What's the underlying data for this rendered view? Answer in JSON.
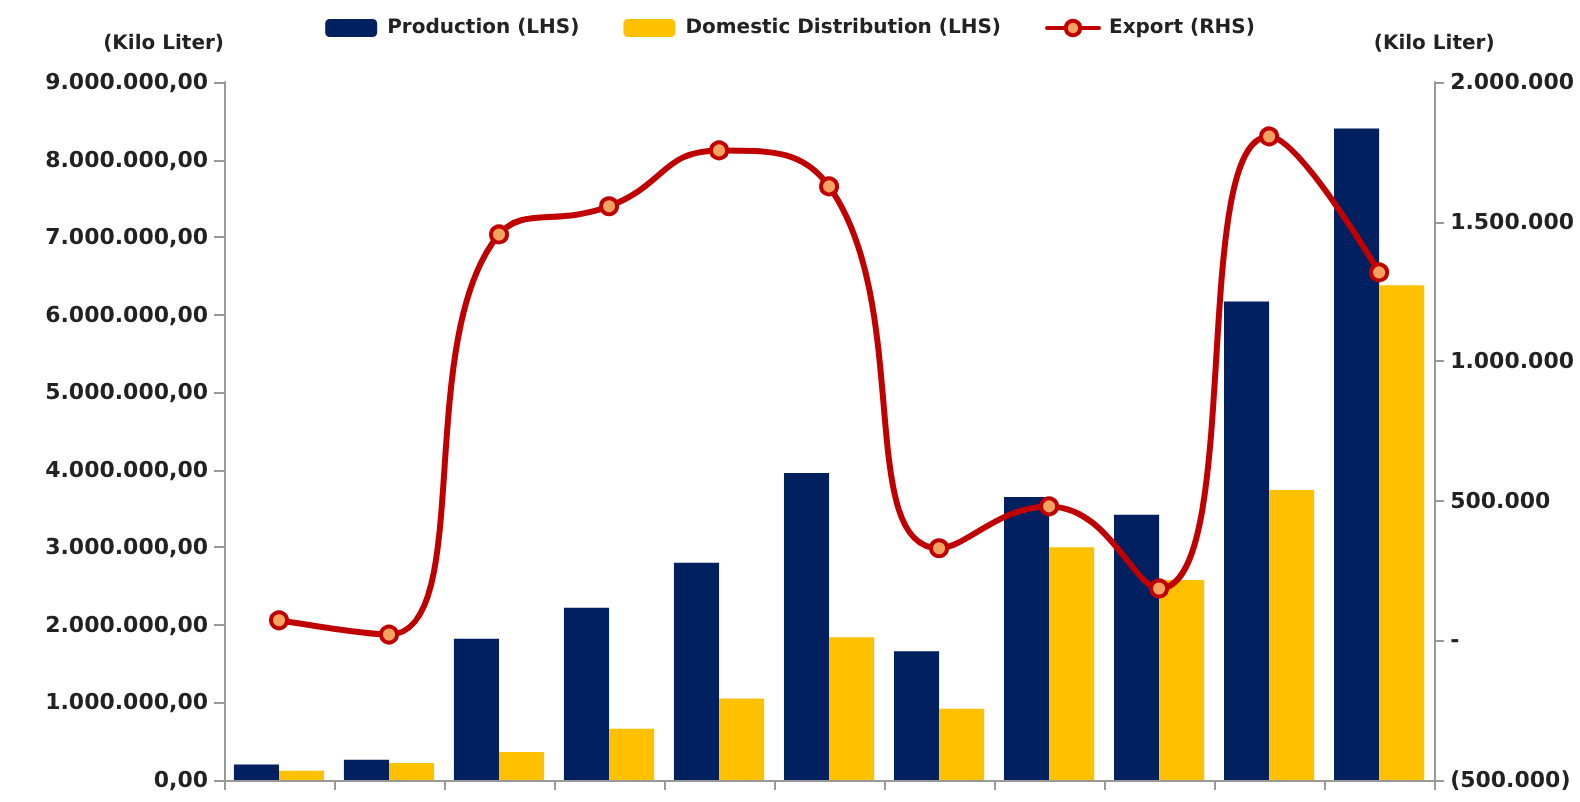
{
  "chart_data": {
    "type": "bar",
    "ylabel": "(Kilo Liter)",
    "y2label": "(Kilo Liter)",
    "categories": [
      null,
      null,
      null,
      null,
      null,
      null,
      null,
      null,
      null,
      null,
      null
    ],
    "series": [
      {
        "name": "Production (LHS)",
        "color": "#002060",
        "values": [
          200000,
          260000,
          1820000,
          2220000,
          2800000,
          3960000,
          1660000,
          3650000,
          3420000,
          6170000,
          8400000
        ]
      },
      {
        "name": "Domestic Distribution (LHS)",
        "color": "#ffc000",
        "values": [
          120000,
          220000,
          360000,
          660000,
          1050000,
          1840000,
          920000,
          3000000,
          2580000,
          3740000,
          6380000
        ]
      },
      {
        "name": "Export (RHS)",
        "type": "line",
        "axis": "y2",
        "color": "#c00000",
        "marker": "circle",
        "values": [
          72000,
          21000,
          1454000,
          1555000,
          1755000,
          1626000,
          330000,
          480000,
          186000,
          1805000,
          1318000
        ]
      }
    ],
    "ylim": [
      0,
      9000000
    ],
    "yticks": [
      {
        "value": 0,
        "label": "0,00"
      },
      {
        "value": 1000000,
        "label": "1.000.000,00"
      },
      {
        "value": 2000000,
        "label": "2.000.000,00"
      },
      {
        "value": 3000000,
        "label": "3.000.000,00"
      },
      {
        "value": 4000000,
        "label": "4.000.000,00"
      },
      {
        "value": 5000000,
        "label": "5.000.000,00"
      },
      {
        "value": 6000000,
        "label": "6.000.000,00"
      },
      {
        "value": 7000000,
        "label": "7.000.000,00"
      },
      {
        "value": 8000000,
        "label": "8.000.000,00"
      },
      {
        "value": 9000000,
        "label": "9.000.000,00"
      }
    ],
    "y2lim": [
      -500000,
      2000000
    ],
    "y2ticks": [
      {
        "value": -500000,
        "label": "(500.000)"
      },
      {
        "value": 0,
        "label": "-"
      },
      {
        "value": 500000,
        "label": "500.000"
      },
      {
        "value": 1000000,
        "label": "1.000.000"
      },
      {
        "value": 1500000,
        "label": "1.500.000"
      },
      {
        "value": 2000000,
        "label": "2.000.000"
      }
    ],
    "grid": false,
    "legend": "top"
  }
}
